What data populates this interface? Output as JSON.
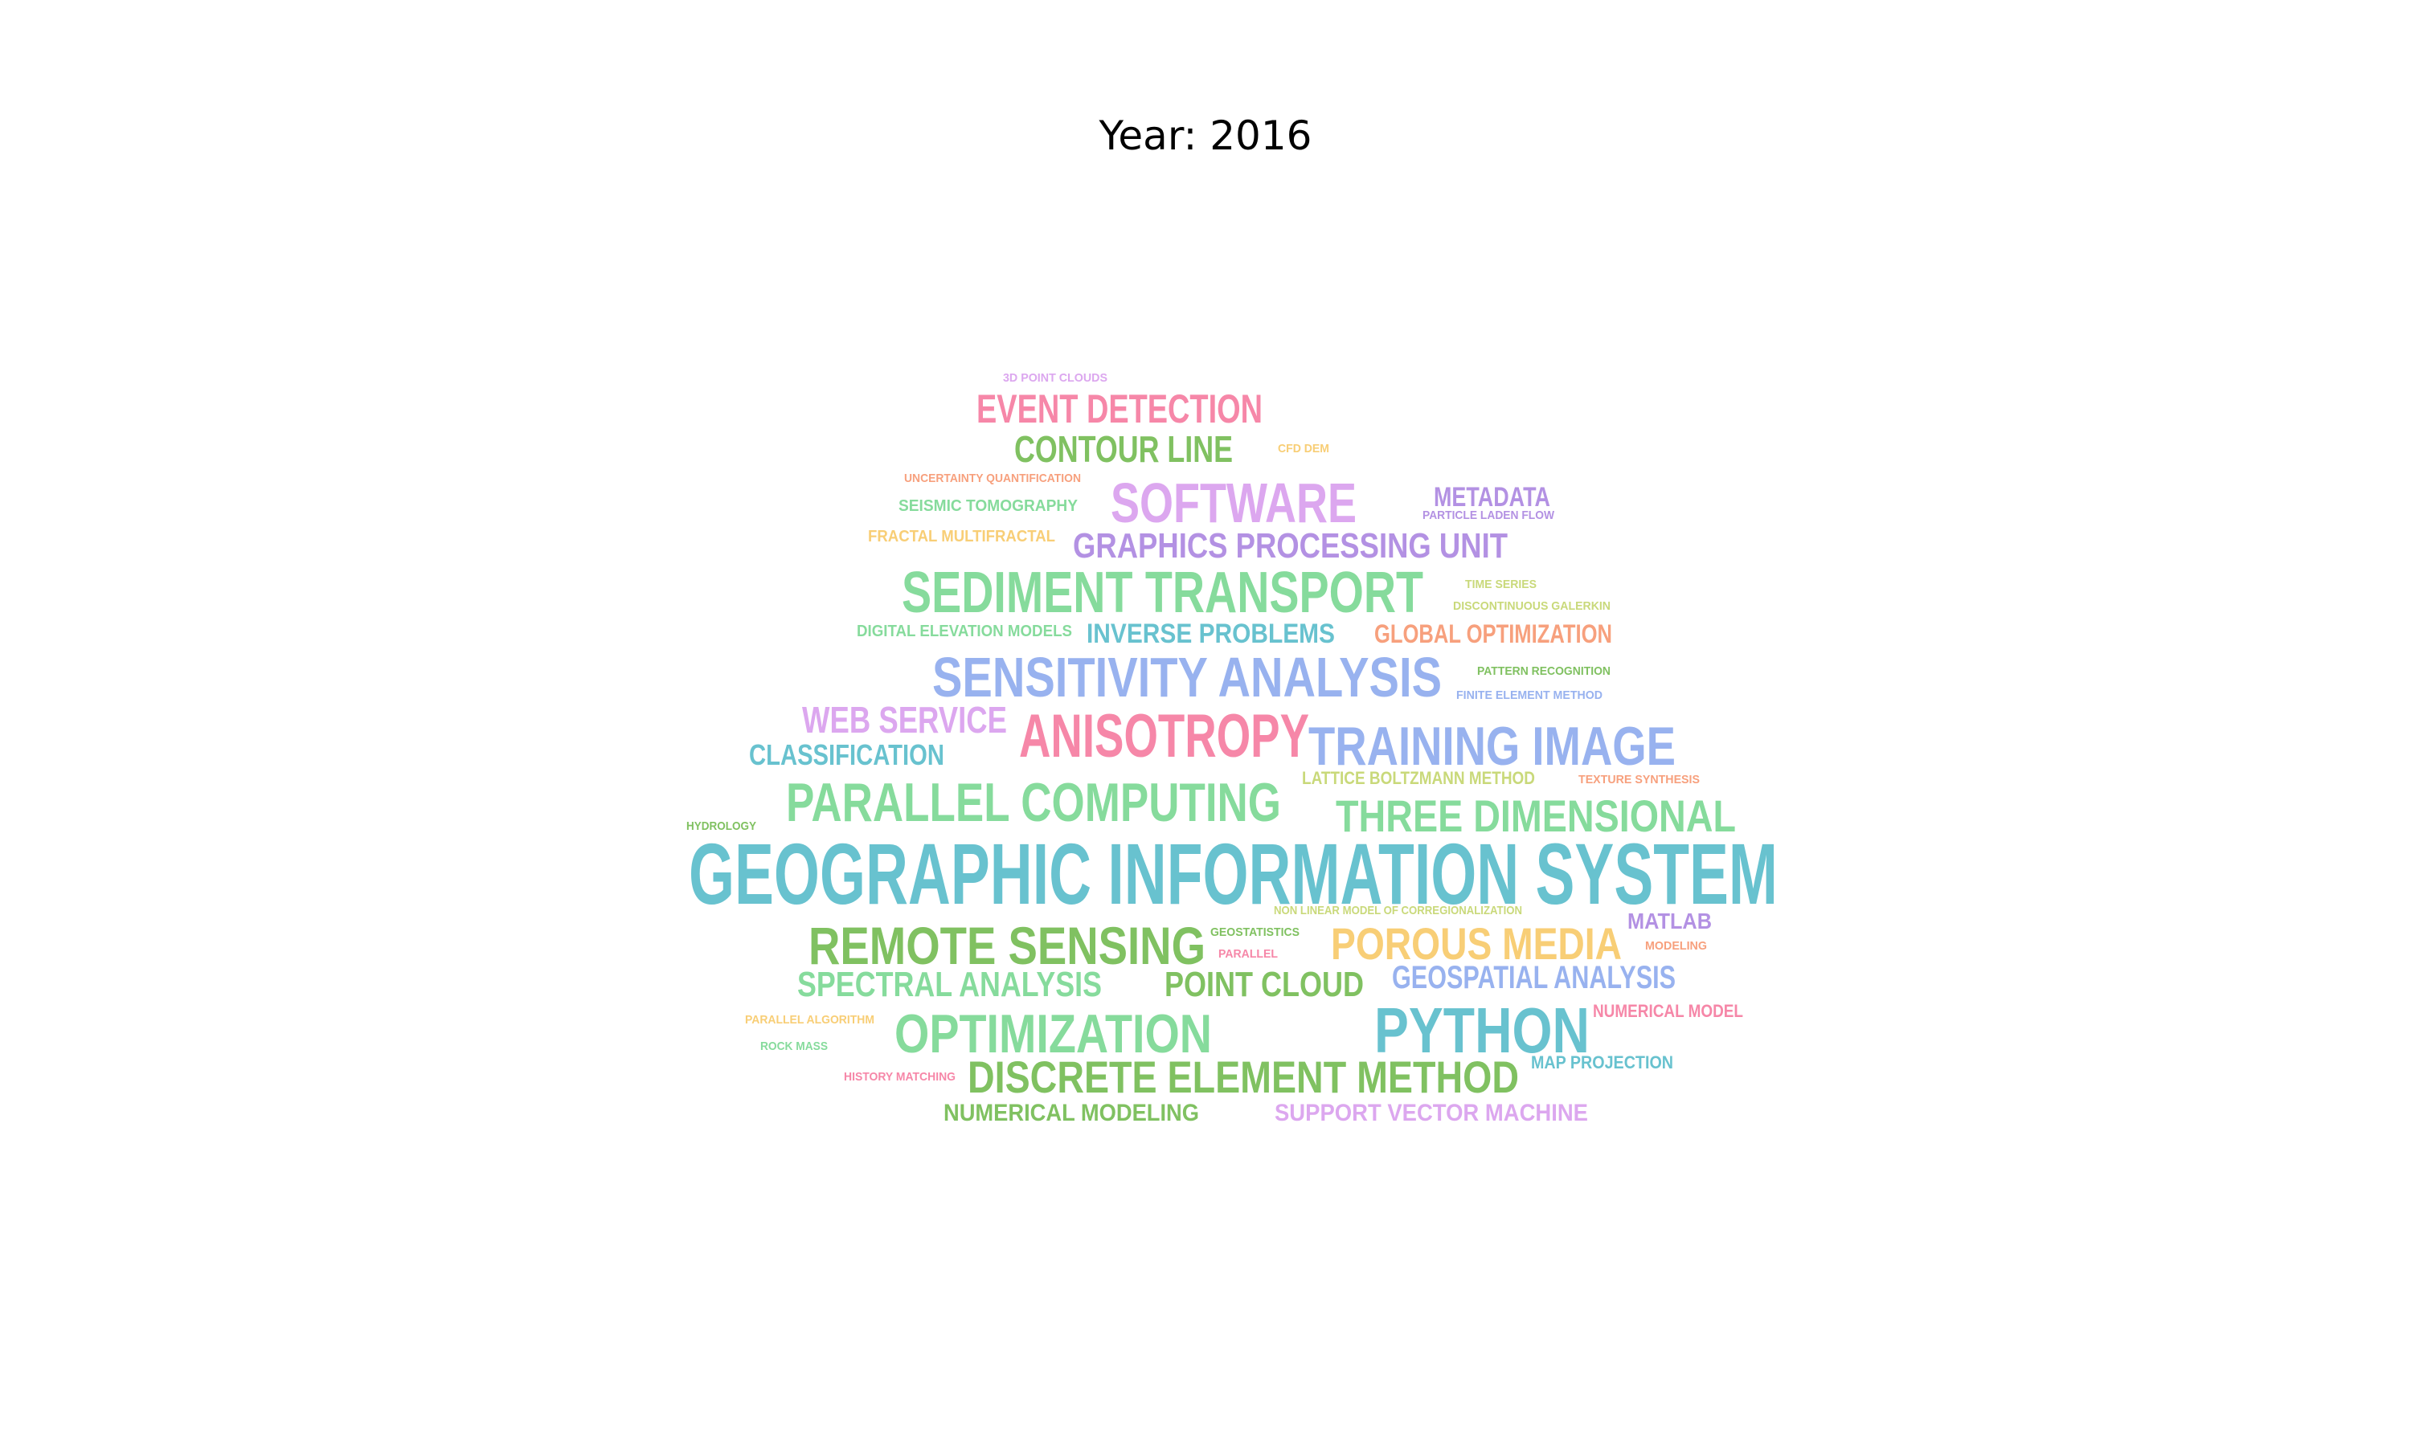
{
  "title": "Year: 2016",
  "colors": {
    "pink": "#F687A8",
    "green": "#80C161",
    "lightgreen": "#86DB9C",
    "lavender": "#DCA7EF",
    "purple": "#B391E3",
    "teal": "#68C2CF",
    "blue": "#98B2EF",
    "orange": "#F7A07D",
    "yellow": "#F8CE76",
    "yellowgreen": "#C9D97A"
  },
  "words": [
    {
      "text": "GEOGRAPHIC INFORMATION SYSTEM",
      "color": "teal"
    },
    {
      "text": "SENSITIVITY ANALYSIS",
      "color": "blue"
    },
    {
      "text": "SEDIMENT TRANSPORT",
      "color": "lightgreen"
    },
    {
      "text": "PARALLEL COMPUTING",
      "color": "lightgreen"
    },
    {
      "text": "TRAINING IMAGE",
      "color": "blue"
    },
    {
      "text": "ANISOTROPY",
      "color": "pink"
    },
    {
      "text": "REMOTE SENSING",
      "color": "green"
    },
    {
      "text": "THREE DIMENSIONAL",
      "color": "lightgreen"
    },
    {
      "text": "OPTIMIZATION",
      "color": "lightgreen"
    },
    {
      "text": "PYTHON",
      "color": "teal"
    },
    {
      "text": "SOFTWARE",
      "color": "lavender"
    },
    {
      "text": "DISCRETE ELEMENT METHOD",
      "color": "green"
    },
    {
      "text": "POROUS MEDIA",
      "color": "yellow"
    },
    {
      "text": "GRAPHICS PROCESSING UNIT",
      "color": "purple"
    },
    {
      "text": "EVENT DETECTION",
      "color": "pink"
    },
    {
      "text": "CONTOUR LINE",
      "color": "green"
    },
    {
      "text": "SPECTRAL ANALYSIS",
      "color": "lightgreen"
    },
    {
      "text": "POINT CLOUD",
      "color": "green"
    },
    {
      "text": "WEB SERVICE",
      "color": "lavender"
    },
    {
      "text": "GEOSPATIAL ANALYSIS",
      "color": "blue"
    },
    {
      "text": "CLASSIFICATION",
      "color": "teal"
    },
    {
      "text": "INVERSE PROBLEMS",
      "color": "teal"
    },
    {
      "text": "GLOBAL OPTIMIZATION",
      "color": "orange"
    },
    {
      "text": "NUMERICAL MODELING",
      "color": "green"
    },
    {
      "text": "SUPPORT VECTOR MACHINE",
      "color": "lavender"
    },
    {
      "text": "METADATA",
      "color": "purple"
    },
    {
      "text": "MATLAB",
      "color": "purple"
    },
    {
      "text": "MAP PROJECTION",
      "color": "teal"
    },
    {
      "text": "NUMERICAL MODEL",
      "color": "pink"
    },
    {
      "text": "LATTICE BOLTZMANN METHOD",
      "color": "yellowgreen"
    },
    {
      "text": "DIGITAL ELEVATION MODELS",
      "color": "lightgreen"
    },
    {
      "text": "SEISMIC TOMOGRAPHY",
      "color": "lightgreen"
    },
    {
      "text": "FRACTAL MULTIFRACTAL",
      "color": "yellow"
    },
    {
      "text": "UNCERTAINTY QUANTIFICATION",
      "color": "orange"
    },
    {
      "text": "3D POINT CLOUDS",
      "color": "lavender"
    },
    {
      "text": "CFD DEM",
      "color": "yellow"
    },
    {
      "text": "PARTICLE LADEN FLOW",
      "color": "purple"
    },
    {
      "text": "TIME SERIES",
      "color": "yellowgreen"
    },
    {
      "text": "DISCONTINUOUS GALERKIN",
      "color": "yellowgreen"
    },
    {
      "text": "PATTERN RECOGNITION",
      "color": "green"
    },
    {
      "text": "FINITE ELEMENT METHOD",
      "color": "blue"
    },
    {
      "text": "TEXTURE SYNTHESIS",
      "color": "orange"
    },
    {
      "text": "HYDROLOGY",
      "color": "green"
    },
    {
      "text": "NON LINEAR MODEL OF CORREGIONALIZATION",
      "color": "yellowgreen"
    },
    {
      "text": "GEOSTATISTICS",
      "color": "green"
    },
    {
      "text": "PARALLEL",
      "color": "pink"
    },
    {
      "text": "MODELING",
      "color": "orange"
    },
    {
      "text": "PARALLEL ALGORITHM",
      "color": "yellow"
    },
    {
      "text": "ROCK MASS",
      "color": "lightgreen"
    },
    {
      "text": "HISTORY MATCHING",
      "color": "pink"
    }
  ]
}
